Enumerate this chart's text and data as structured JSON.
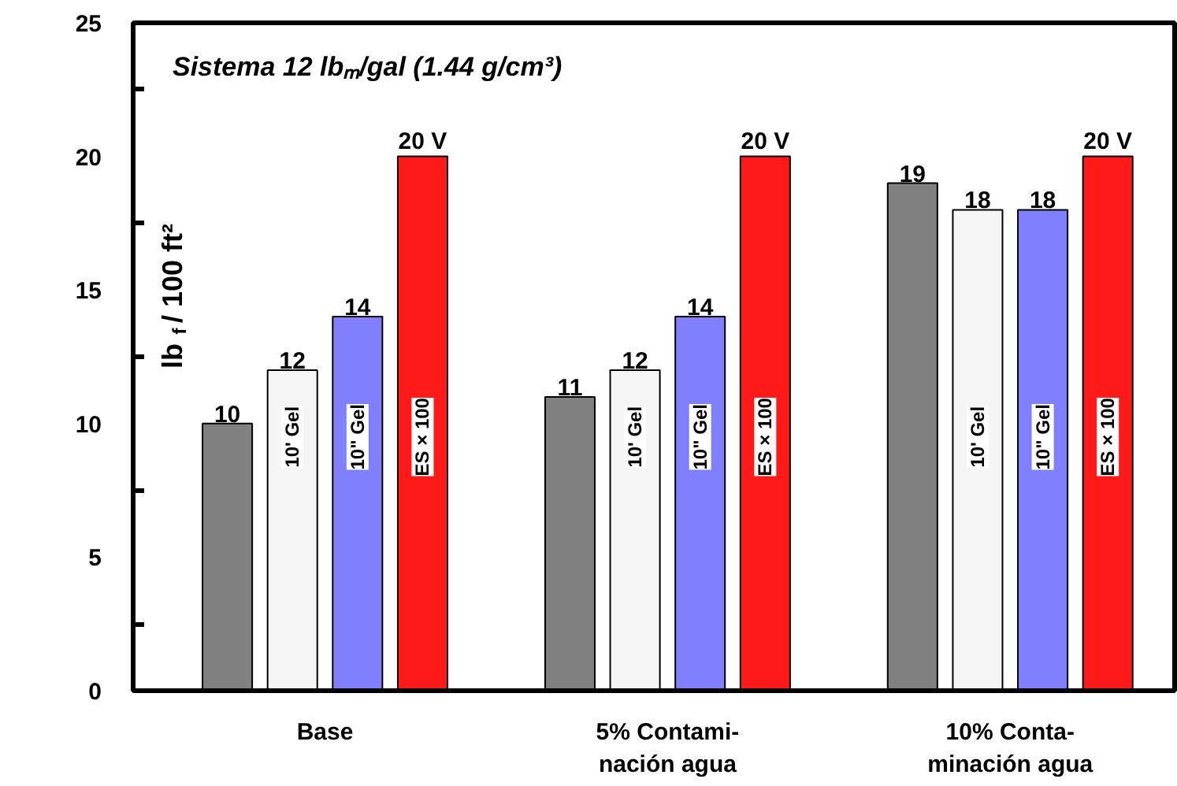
{
  "chart_data": {
    "type": "bar",
    "title": "Sistema 12 lbₘ/gal (1.44 g/cm³)",
    "ylabel": "lb$_{f}$ / 100 ft²",
    "categories": [
      "Base",
      "5% Contami-\nnación agua",
      "10% Conta-\nminación agua"
    ],
    "ylim": [
      0,
      25
    ],
    "yticks": [
      0,
      {
        "value": 2.5,
        "label": null
      },
      5,
      {
        "value": 7.5,
        "label": null
      },
      10,
      {
        "value": 12.5,
        "label": null
      },
      15,
      {
        "value": 17.5,
        "label": null
      },
      20,
      {
        "value": 22.5,
        "label": null
      },
      25
    ],
    "grid": false,
    "series": [
      {
        "color": "#808080",
        "values": [
          10,
          11,
          19
        ],
        "value_labels": [
          "10",
          "11",
          "19"
        ]
      },
      {
        "name": "10' Gel",
        "color": "#f5f5f5",
        "values": [
          12,
          12,
          18
        ],
        "value_labels": [
          "12",
          "12",
          "18"
        ]
      },
      {
        "name": "10\" Gel",
        "color": "#8080ff",
        "values": [
          14,
          14,
          18
        ],
        "value_labels": [
          "14",
          "14",
          "18"
        ]
      },
      {
        "name": "ES × 100",
        "color": "#ff1a1a",
        "values": [
          20,
          20,
          20
        ],
        "value_labels": [
          "20 V",
          "20 V",
          "20 V"
        ]
      }
    ]
  }
}
